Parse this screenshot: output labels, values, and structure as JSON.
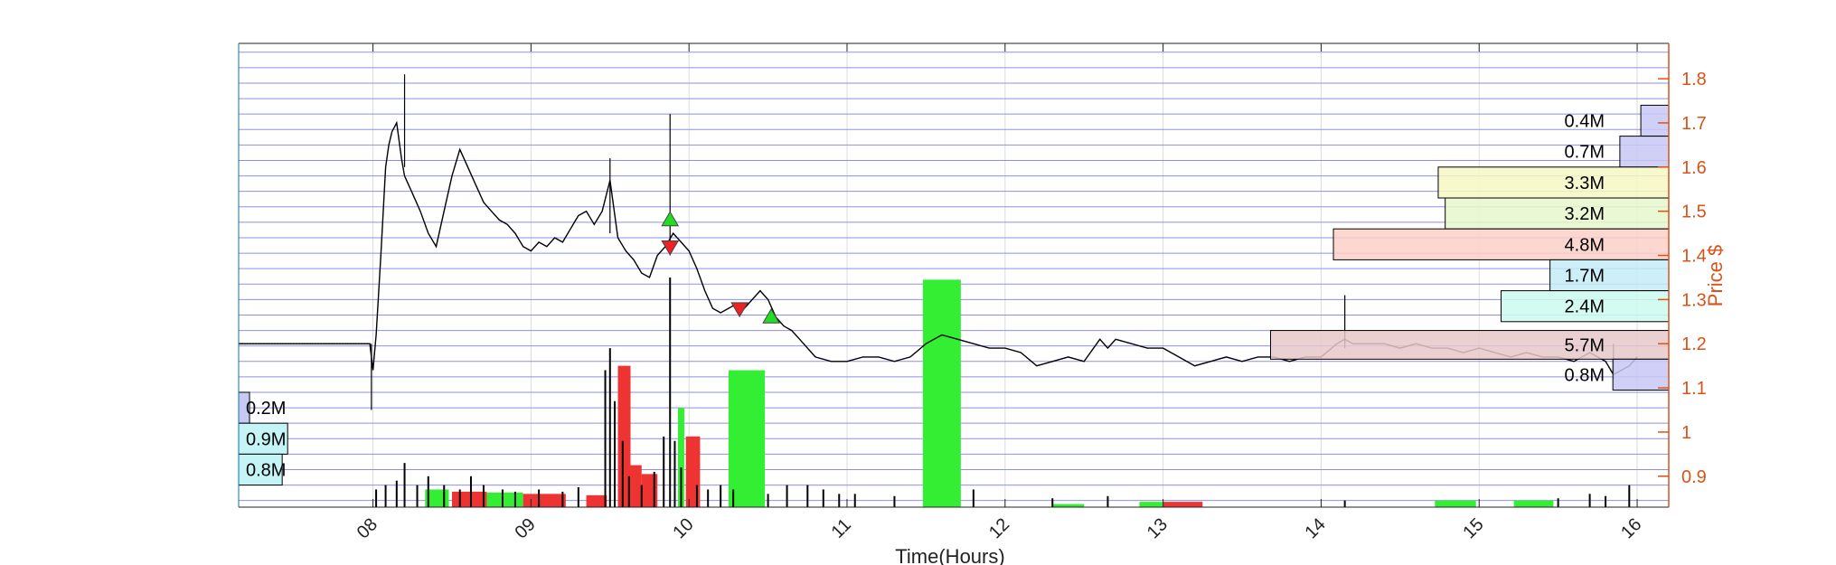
{
  "chart_data": {
    "type": "line",
    "xlabel": "Time(Hours)",
    "ylabel": "Price $",
    "xlim": [
      7.15,
      16.2
    ],
    "ylim": [
      0.83,
      1.88
    ],
    "x_ticks": [
      8,
      9,
      10,
      11,
      12,
      13,
      14,
      15,
      16
    ],
    "x_tick_labels": [
      "08",
      "09",
      "10",
      "11",
      "12",
      "13",
      "14",
      "15",
      "16"
    ],
    "y_ticks": [
      0.9,
      1.0,
      1.1,
      1.2,
      1.3,
      1.4,
      1.5,
      1.6,
      1.7,
      1.8
    ],
    "y_tick_labels": [
      "0.9",
      "1",
      "1.1",
      "1.2",
      "1.3",
      "1.4",
      "1.5",
      "1.6",
      "1.7",
      "1.8"
    ],
    "grid": true,
    "price_series": {
      "x": [
        7.15,
        7.98,
        8.0,
        8.02,
        8.05,
        8.08,
        8.1,
        8.12,
        8.15,
        8.18,
        8.2,
        8.25,
        8.3,
        8.35,
        8.4,
        8.45,
        8.5,
        8.55,
        8.6,
        8.65,
        8.7,
        8.75,
        8.8,
        8.85,
        8.9,
        8.95,
        9.0,
        9.05,
        9.1,
        9.15,
        9.2,
        9.25,
        9.3,
        9.35,
        9.4,
        9.45,
        9.5,
        9.55,
        9.6,
        9.65,
        9.7,
        9.75,
        9.8,
        9.85,
        9.9,
        9.95,
        10.0,
        10.05,
        10.1,
        10.15,
        10.2,
        10.25,
        10.3,
        10.35,
        10.4,
        10.45,
        10.5,
        10.55,
        10.6,
        10.65,
        10.7,
        10.75,
        10.8,
        10.9,
        11.0,
        11.1,
        11.2,
        11.3,
        11.4,
        11.5,
        11.55,
        11.6,
        11.7,
        11.8,
        11.9,
        12.0,
        12.1,
        12.2,
        12.3,
        12.4,
        12.5,
        12.6,
        12.65,
        12.7,
        12.8,
        12.9,
        13.0,
        13.1,
        13.2,
        13.3,
        13.4,
        13.5,
        13.6,
        13.7,
        13.8,
        13.9,
        14.0,
        14.1,
        14.15,
        14.2,
        14.3,
        14.4,
        14.5,
        14.6,
        14.7,
        14.8,
        14.9,
        15.0,
        15.1,
        15.2,
        15.3,
        15.4,
        15.5,
        15.6,
        15.7,
        15.8,
        15.85,
        15.9,
        15.95,
        16.0
      ],
      "y": [
        1.2,
        1.2,
        1.14,
        1.22,
        1.4,
        1.6,
        1.65,
        1.68,
        1.7,
        1.62,
        1.58,
        1.54,
        1.5,
        1.45,
        1.42,
        1.5,
        1.58,
        1.64,
        1.6,
        1.56,
        1.52,
        1.5,
        1.48,
        1.47,
        1.45,
        1.42,
        1.41,
        1.43,
        1.42,
        1.44,
        1.43,
        1.46,
        1.49,
        1.5,
        1.47,
        1.5,
        1.57,
        1.44,
        1.41,
        1.39,
        1.36,
        1.35,
        1.4,
        1.42,
        1.45,
        1.43,
        1.41,
        1.37,
        1.32,
        1.28,
        1.27,
        1.28,
        1.29,
        1.28,
        1.3,
        1.32,
        1.3,
        1.26,
        1.24,
        1.23,
        1.21,
        1.19,
        1.17,
        1.16,
        1.16,
        1.17,
        1.17,
        1.16,
        1.17,
        1.2,
        1.21,
        1.22,
        1.21,
        1.2,
        1.19,
        1.19,
        1.18,
        1.15,
        1.16,
        1.17,
        1.16,
        1.21,
        1.19,
        1.21,
        1.2,
        1.19,
        1.19,
        1.17,
        1.15,
        1.16,
        1.17,
        1.16,
        1.17,
        1.17,
        1.16,
        1.17,
        1.17,
        1.2,
        1.21,
        1.2,
        1.2,
        1.2,
        1.19,
        1.2,
        1.19,
        1.19,
        1.18,
        1.19,
        1.18,
        1.17,
        1.18,
        1.17,
        1.17,
        1.16,
        1.18,
        1.16,
        1.13,
        1.14,
        1.15,
        1.17
      ]
    },
    "trade_markers": [
      {
        "type": "buy",
        "x": 9.88,
        "y": 1.48
      },
      {
        "type": "sell",
        "x": 9.88,
        "y": 1.42
      },
      {
        "type": "sell",
        "x": 10.32,
        "y": 1.28
      },
      {
        "type": "buy",
        "x": 10.52,
        "y": 1.26
      }
    ],
    "volume_profile_right": [
      {
        "label": "0.4M",
        "volume": 0.4,
        "y_low": 1.67,
        "y_high": 1.74,
        "color": "#c8c8f4"
      },
      {
        "label": "0.7M",
        "volume": 0.7,
        "y_low": 1.6,
        "y_high": 1.67,
        "color": "#c8c8f4"
      },
      {
        "label": "3.3M",
        "volume": 3.3,
        "y_low": 1.53,
        "y_high": 1.6,
        "color": "#f6f8c4"
      },
      {
        "label": "3.2M",
        "volume": 3.2,
        "y_low": 1.46,
        "y_high": 1.53,
        "color": "#e6f8cc"
      },
      {
        "label": "4.8M",
        "volume": 4.8,
        "y_low": 1.39,
        "y_high": 1.46,
        "color": "#fcd0c8"
      },
      {
        "label": "1.7M",
        "volume": 1.7,
        "y_low": 1.32,
        "y_high": 1.39,
        "color": "#c4ecf6"
      },
      {
        "label": "2.4M",
        "volume": 2.4,
        "y_low": 1.25,
        "y_high": 1.32,
        "color": "#ccfaee"
      },
      {
        "label": "5.7M",
        "volume": 5.7,
        "y_low": 1.165,
        "y_high": 1.23,
        "color": "#e6c8c8"
      },
      {
        "label": "0.8M",
        "volume": 0.8,
        "y_low": 1.095,
        "y_high": 1.165,
        "color": "#c8c8f4"
      }
    ],
    "volume_profile_left": [
      {
        "label": "0.2M",
        "volume": 0.2,
        "y_low": 1.02,
        "y_high": 1.09,
        "color": "#c8c8f4"
      },
      {
        "label": "0.9M",
        "volume": 0.9,
        "y_low": 0.95,
        "y_high": 1.02,
        "color": "#c4f4f6"
      },
      {
        "label": "0.8M",
        "volume": 0.8,
        "y_low": 0.88,
        "y_high": 0.95,
        "color": "#c4f4f6"
      }
    ],
    "volume_blocks": [
      {
        "x0": 8.33,
        "x1": 8.48,
        "top": 0.87,
        "color": "#33ee33"
      },
      {
        "x0": 8.5,
        "x1": 8.72,
        "top": 0.865,
        "color": "#ee3333"
      },
      {
        "x0": 8.72,
        "x1": 8.95,
        "top": 0.863,
        "color": "#33ee33"
      },
      {
        "x0": 8.95,
        "x1": 9.22,
        "top": 0.86,
        "color": "#ee3333"
      },
      {
        "x0": 9.35,
        "x1": 9.48,
        "top": 0.857,
        "color": "#ee3333"
      },
      {
        "x0": 9.55,
        "x1": 9.63,
        "top": 1.15,
        "color": "#ee3333"
      },
      {
        "x0": 9.63,
        "x1": 9.7,
        "top": 0.925,
        "color": "#ee3333"
      },
      {
        "x0": 9.7,
        "x1": 9.8,
        "top": 0.905,
        "color": "#ee3333"
      },
      {
        "x0": 9.93,
        "x1": 9.97,
        "top": 1.055,
        "color": "#33ee33"
      },
      {
        "x0": 9.98,
        "x1": 10.07,
        "top": 0.99,
        "color": "#ee3333"
      },
      {
        "x0": 10.25,
        "x1": 10.48,
        "top": 1.14,
        "color": "#33ee33"
      },
      {
        "x0": 11.48,
        "x1": 11.72,
        "top": 1.345,
        "color": "#33ee33"
      },
      {
        "x0": 12.3,
        "x1": 12.5,
        "top": 0.837,
        "color": "#33ee33"
      },
      {
        "x0": 12.85,
        "x1": 13.0,
        "top": 0.842,
        "color": "#33ee33"
      },
      {
        "x0": 13.0,
        "x1": 13.25,
        "top": 0.842,
        "color": "#ee3333"
      },
      {
        "x0": 14.72,
        "x1": 14.98,
        "top": 0.845,
        "color": "#33ee33"
      },
      {
        "x0": 15.22,
        "x1": 15.47,
        "top": 0.845,
        "color": "#33ee33"
      }
    ],
    "volume_spikes": [
      {
        "x": 8.02,
        "top": 0.87
      },
      {
        "x": 8.08,
        "top": 0.88
      },
      {
        "x": 8.15,
        "top": 0.89
      },
      {
        "x": 8.2,
        "top": 0.93
      },
      {
        "x": 8.28,
        "top": 0.88
      },
      {
        "x": 8.35,
        "top": 0.9
      },
      {
        "x": 8.45,
        "top": 0.88
      },
      {
        "x": 8.55,
        "top": 0.87
      },
      {
        "x": 8.62,
        "top": 0.9
      },
      {
        "x": 8.7,
        "top": 0.88
      },
      {
        "x": 8.82,
        "top": 0.87
      },
      {
        "x": 8.9,
        "top": 0.865
      },
      {
        "x": 9.05,
        "top": 0.87
      },
      {
        "x": 9.2,
        "top": 0.865
      },
      {
        "x": 9.3,
        "top": 0.875
      },
      {
        "x": 9.47,
        "top": 1.14
      },
      {
        "x": 9.5,
        "top": 1.19
      },
      {
        "x": 9.53,
        "top": 1.07
      },
      {
        "x": 9.58,
        "top": 0.98
      },
      {
        "x": 9.62,
        "top": 0.9
      },
      {
        "x": 9.7,
        "top": 0.88
      },
      {
        "x": 9.78,
        "top": 0.91
      },
      {
        "x": 9.84,
        "top": 0.99
      },
      {
        "x": 9.88,
        "top": 1.35
      },
      {
        "x": 9.91,
        "top": 0.98
      },
      {
        "x": 9.95,
        "top": 0.92
      },
      {
        "x": 10.05,
        "top": 0.88
      },
      {
        "x": 10.12,
        "top": 0.87
      },
      {
        "x": 10.2,
        "top": 0.88
      },
      {
        "x": 10.28,
        "top": 0.87
      },
      {
        "x": 10.5,
        "top": 0.86
      },
      {
        "x": 10.62,
        "top": 0.88
      },
      {
        "x": 10.75,
        "top": 0.88
      },
      {
        "x": 10.85,
        "top": 0.87
      },
      {
        "x": 10.95,
        "top": 0.86
      },
      {
        "x": 11.05,
        "top": 0.86
      },
      {
        "x": 11.3,
        "top": 0.855
      },
      {
        "x": 11.8,
        "top": 0.87
      },
      {
        "x": 12.3,
        "top": 0.85
      },
      {
        "x": 12.65,
        "top": 0.855
      },
      {
        "x": 14.15,
        "top": 0.845
      },
      {
        "x": 15.5,
        "top": 0.85
      },
      {
        "x": 15.7,
        "top": 0.86
      },
      {
        "x": 15.8,
        "top": 0.855
      },
      {
        "x": 15.95,
        "top": 0.88
      }
    ]
  }
}
